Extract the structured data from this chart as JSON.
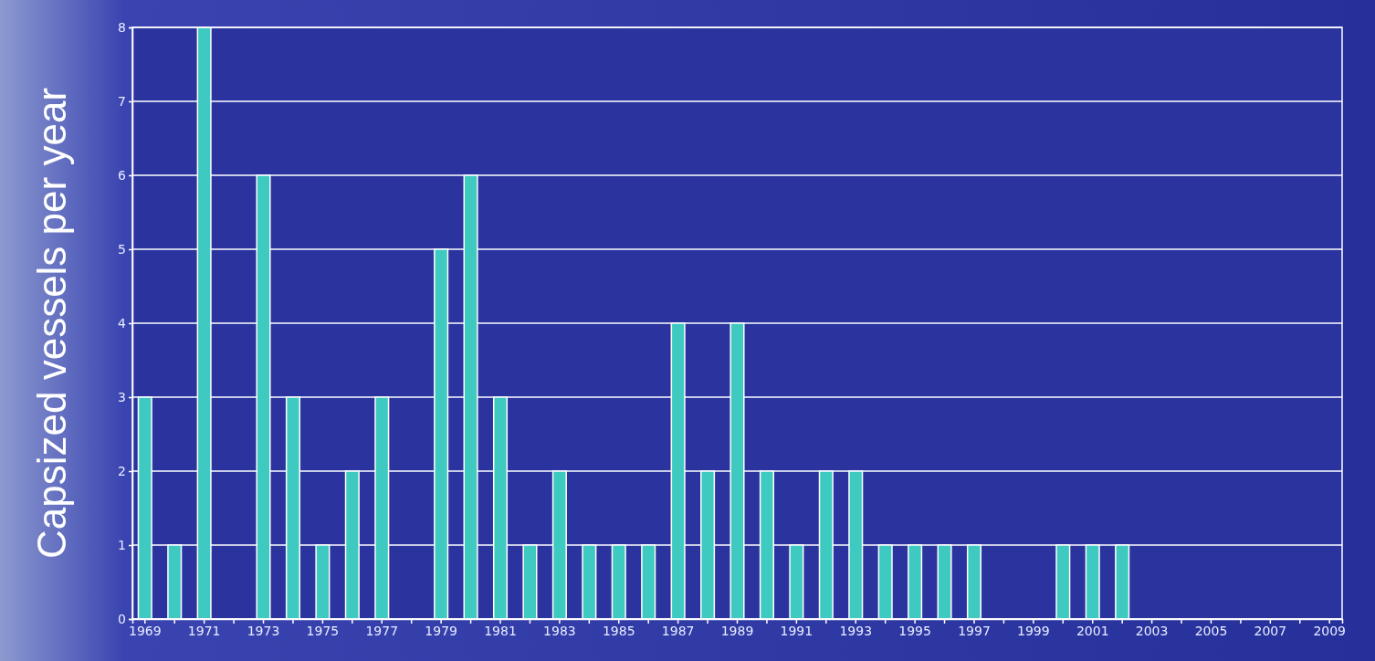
{
  "chart_data": {
    "type": "bar",
    "ylabel": "Capsized vessels per year",
    "categories": [
      "1969",
      null,
      "1971",
      null,
      "1973",
      null,
      "1975",
      null,
      "1977",
      null,
      "1979",
      null,
      "1981",
      null,
      "1983",
      null,
      "1985",
      null,
      "1987",
      null,
      "1989",
      null,
      "1991",
      null,
      "1993",
      null,
      "1995",
      null,
      "1997",
      null,
      "1999",
      null,
      "2001",
      null,
      "2003",
      null,
      "2005",
      null,
      "2007",
      null,
      "2009"
    ],
    "values": [
      3,
      1,
      8,
      0,
      6,
      3,
      1,
      2,
      3,
      0,
      5,
      6,
      3,
      1,
      2,
      1,
      1,
      1,
      4,
      2,
      4,
      2,
      1,
      2,
      2,
      1,
      1,
      1,
      1,
      0,
      0,
      1,
      1,
      1,
      0,
      0,
      0,
      0,
      0,
      0,
      0
    ],
    "color": "#3ec9c1",
    "ylim": [
      0,
      8
    ],
    "yticks": [
      0,
      1,
      2,
      3,
      4,
      5,
      6,
      7,
      8
    ],
    "grid": "y"
  }
}
